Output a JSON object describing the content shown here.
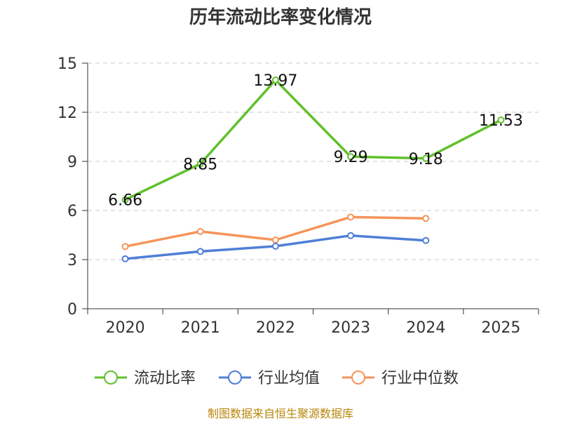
{
  "chart_data": {
    "type": "line",
    "title": "历年流动比率变化情况",
    "categories": [
      "2020",
      "2021",
      "2022",
      "2023",
      "2024",
      "2025"
    ],
    "ylim": [
      0,
      15
    ],
    "yticks": [
      0,
      3,
      6,
      9,
      12,
      15
    ],
    "grid": true,
    "legend_position": "bottom",
    "series": [
      {
        "name": "流动比率",
        "color": "#5fc12b",
        "values": [
          6.66,
          8.85,
          13.97,
          9.29,
          9.18,
          11.53
        ],
        "labels": [
          "6.66",
          "8.85",
          "13.97",
          "9.29",
          "9.18",
          "11.53"
        ]
      },
      {
        "name": "行业均值",
        "color": "#4f7fd6",
        "values": [
          3.05,
          3.5,
          3.82,
          4.47,
          4.17,
          null
        ]
      },
      {
        "name": "行业中位数",
        "color": "#f5945a",
        "values": [
          3.8,
          4.72,
          4.2,
          5.6,
          5.52,
          null
        ]
      }
    ]
  },
  "source": "制图数据来自恒生聚源数据库"
}
